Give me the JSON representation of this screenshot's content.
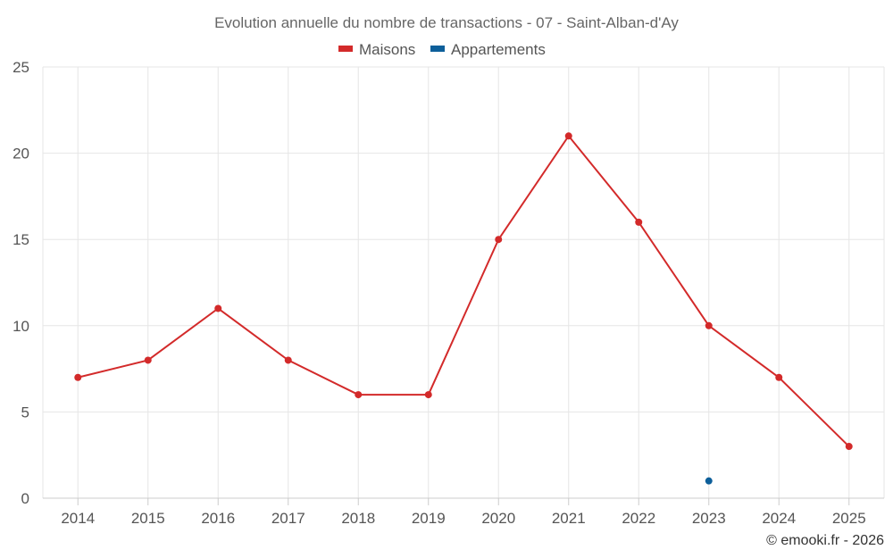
{
  "chart_data": {
    "type": "line",
    "title": "Evolution annuelle du nombre de transactions - 07 - Saint-Alban-d'Ay",
    "categories": [
      "2014",
      "2015",
      "2016",
      "2017",
      "2018",
      "2019",
      "2020",
      "2021",
      "2022",
      "2023",
      "2024",
      "2025"
    ],
    "series": [
      {
        "name": "Maisons",
        "color": "#d32a2a",
        "values": [
          7,
          8,
          11,
          8,
          6,
          6,
          15,
          21,
          16,
          10,
          7,
          3
        ]
      },
      {
        "name": "Appartements",
        "color": "#0d5f9a",
        "values": [
          null,
          null,
          null,
          null,
          null,
          null,
          null,
          null,
          null,
          1,
          null,
          null
        ]
      }
    ],
    "yticks": [
      "0",
      "5",
      "10",
      "15",
      "20",
      "25"
    ],
    "ylim": [
      0,
      25
    ],
    "grid": true,
    "legend_position": "top-center",
    "credit": "© emooki.fr - 2026"
  }
}
